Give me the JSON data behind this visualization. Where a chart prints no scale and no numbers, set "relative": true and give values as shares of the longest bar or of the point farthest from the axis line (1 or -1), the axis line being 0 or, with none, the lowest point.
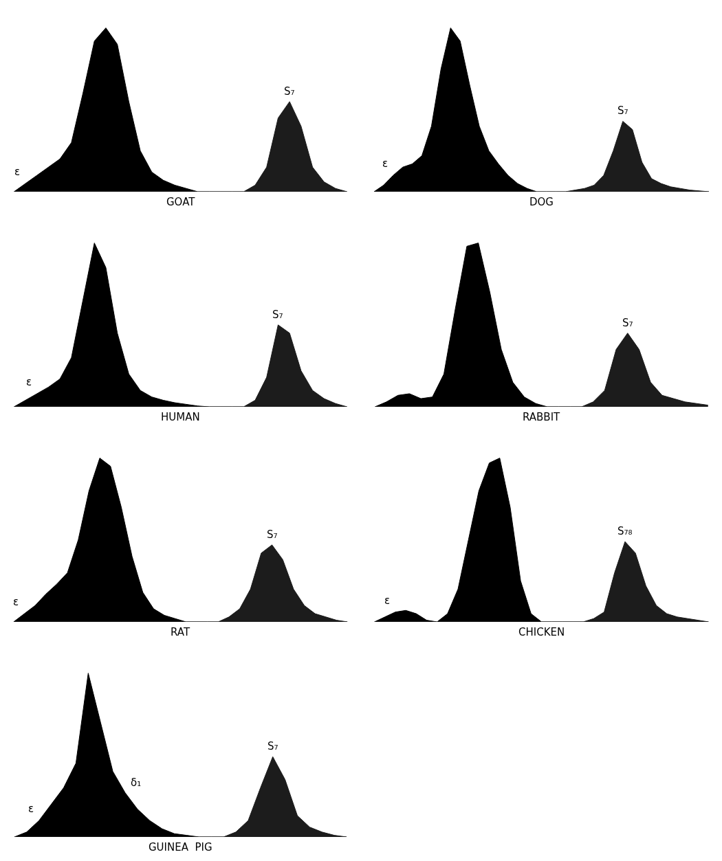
{
  "chart_data": [
    {
      "type": "area",
      "relative": true,
      "xlabel": "GOAT",
      "annotations": [
        "ε"
      ],
      "categories": [
        null,
        null,
        null,
        null,
        null,
        null,
        null,
        null,
        null,
        null,
        null,
        null,
        null,
        null,
        null,
        null,
        null,
        null,
        null,
        null,
        null,
        null,
        null,
        null,
        null,
        null,
        null,
        null,
        null,
        null
      ],
      "series": [
        {
          "color": "#000000",
          "values": [
            0,
            0.05,
            0.1,
            0.15,
            0.2,
            0.3,
            0.6,
            0.92,
            1.0,
            0.9,
            0.55,
            0.25,
            0.12,
            0.07,
            0.04,
            0.02,
            0,
            0,
            0,
            0,
            0,
            0,
            0,
            0,
            0,
            0,
            0,
            0,
            0,
            0
          ]
        },
        {
          "name": "S₇",
          "color": "#1c1c1c",
          "values": [
            0,
            0,
            0,
            0,
            0,
            0,
            0,
            0,
            0,
            0,
            0,
            0,
            0,
            0,
            0,
            0,
            0,
            0,
            0,
            0,
            0,
            0.04,
            0.15,
            0.45,
            0.55,
            0.4,
            0.15,
            0.06,
            0.02,
            0
          ]
        }
      ]
    },
    {
      "type": "area",
      "relative": true,
      "xlabel": "DOG",
      "annotations": [
        "ε"
      ],
      "categories": [
        null,
        null,
        null,
        null,
        null,
        null,
        null,
        null,
        null,
        null,
        null,
        null,
        null,
        null,
        null,
        null,
        null,
        null,
        null,
        null,
        null,
        null,
        null,
        null,
        null,
        null,
        null,
        null,
        null,
        null,
        null,
        null,
        null,
        null,
        null,
        null
      ],
      "series": [
        {
          "color": "#000000",
          "values": [
            0,
            0.04,
            0.1,
            0.15,
            0.17,
            0.22,
            0.4,
            0.75,
            1.0,
            0.92,
            0.65,
            0.4,
            0.25,
            0.17,
            0.1,
            0.05,
            0.02,
            0,
            0,
            0,
            0,
            0,
            0,
            0,
            0,
            0,
            0,
            0,
            0,
            0,
            0,
            0,
            0,
            0,
            0,
            0
          ]
        },
        {
          "name": "S₇",
          "color": "#1c1c1c",
          "values": [
            0,
            0,
            0,
            0,
            0,
            0,
            0,
            0,
            0,
            0,
            0,
            0,
            0,
            0,
            0,
            0,
            0,
            0,
            0,
            0,
            0,
            0.01,
            0.02,
            0.04,
            0.1,
            0.25,
            0.43,
            0.38,
            0.18,
            0.08,
            0.05,
            0.03,
            0.02,
            0.01,
            0.005,
            0
          ]
        }
      ]
    },
    {
      "type": "area",
      "relative": true,
      "xlabel": "HUMAN",
      "annotations": [
        "ε"
      ],
      "categories": [
        null,
        null,
        null,
        null,
        null,
        null,
        null,
        null,
        null,
        null,
        null,
        null,
        null,
        null,
        null,
        null,
        null,
        null,
        null,
        null,
        null,
        null,
        null,
        null,
        null,
        null,
        null,
        null,
        null,
        null
      ],
      "series": [
        {
          "color": "#000000",
          "values": [
            0,
            0.04,
            0.08,
            0.12,
            0.17,
            0.3,
            0.65,
            1.0,
            0.85,
            0.45,
            0.2,
            0.1,
            0.06,
            0.04,
            0.025,
            0.015,
            0.005,
            0,
            0,
            0,
            0,
            0,
            0,
            0,
            0,
            0,
            0,
            0,
            0,
            0
          ]
        },
        {
          "name": "S₇",
          "color": "#1c1c1c",
          "values": [
            0,
            0,
            0,
            0,
            0,
            0,
            0,
            0,
            0,
            0,
            0,
            0,
            0,
            0,
            0,
            0,
            0,
            0,
            0,
            0,
            0,
            0.04,
            0.18,
            0.5,
            0.45,
            0.22,
            0.1,
            0.05,
            0.02,
            0
          ]
        }
      ]
    },
    {
      "type": "area",
      "relative": true,
      "xlabel": "RABBIT",
      "categories": [
        null,
        null,
        null,
        null,
        null,
        null,
        null,
        null,
        null,
        null,
        null,
        null,
        null,
        null,
        null,
        null,
        null,
        null,
        null,
        null,
        null,
        null,
        null,
        null,
        null,
        null,
        null,
        null,
        null,
        null
      ],
      "series": [
        {
          "color": "#000000",
          "values": [
            0,
            0.03,
            0.07,
            0.08,
            0.05,
            0.06,
            0.2,
            0.6,
            0.98,
            1.0,
            0.7,
            0.35,
            0.15,
            0.06,
            0.02,
            0,
            0,
            0,
            0,
            0,
            0,
            0,
            0,
            0,
            0,
            0,
            0,
            0,
            0,
            0
          ]
        },
        {
          "name": "S₇",
          "color": "#1c1c1c",
          "values": [
            0,
            0,
            0,
            0,
            0,
            0,
            0,
            0,
            0,
            0,
            0,
            0,
            0,
            0,
            0,
            0,
            0,
            0,
            0,
            0.03,
            0.1,
            0.35,
            0.45,
            0.35,
            0.15,
            0.07,
            0.05,
            0.03,
            0.02,
            0.01
          ]
        }
      ]
    },
    {
      "type": "area",
      "relative": true,
      "xlabel": "RAT",
      "annotations": [
        "ε"
      ],
      "categories": [
        null,
        null,
        null,
        null,
        null,
        null,
        null,
        null,
        null,
        null,
        null,
        null,
        null,
        null,
        null,
        null,
        null,
        null,
        null,
        null,
        null,
        null,
        null,
        null,
        null,
        null,
        null,
        null,
        null,
        null,
        null,
        null
      ],
      "series": [
        {
          "color": "#000000",
          "values": [
            0,
            0.05,
            0.1,
            0.17,
            0.23,
            0.3,
            0.5,
            0.8,
            1.0,
            0.95,
            0.7,
            0.4,
            0.18,
            0.08,
            0.04,
            0.02,
            0,
            0,
            0,
            0,
            0,
            0,
            0,
            0,
            0,
            0,
            0,
            0,
            0,
            0,
            0,
            0
          ]
        },
        {
          "name": "S₇",
          "color": "#1c1c1c",
          "values": [
            0,
            0,
            0,
            0,
            0,
            0,
            0,
            0,
            0,
            0,
            0,
            0,
            0,
            0,
            0,
            0,
            0,
            0,
            0,
            0,
            0.03,
            0.08,
            0.2,
            0.42,
            0.47,
            0.38,
            0.2,
            0.1,
            0.05,
            0.03,
            0.01,
            0
          ]
        }
      ]
    },
    {
      "type": "area",
      "relative": true,
      "xlabel": "CHICKEN",
      "annotations": [
        "ε"
      ],
      "categories": [
        null,
        null,
        null,
        null,
        null,
        null,
        null,
        null,
        null,
        null,
        null,
        null,
        null,
        null,
        null,
        null,
        null,
        null,
        null,
        null,
        null,
        null,
        null,
        null,
        null,
        null,
        null,
        null,
        null,
        null,
        null,
        null,
        null
      ],
      "series": [
        {
          "color": "#000000",
          "values": [
            0,
            0.03,
            0.06,
            0.07,
            0.05,
            0.01,
            0,
            0.05,
            0.2,
            0.5,
            0.8,
            0.97,
            1.0,
            0.7,
            0.25,
            0.05,
            0,
            0,
            0,
            0,
            0,
            0,
            0,
            0,
            0,
            0,
            0,
            0,
            0,
            0,
            0,
            0,
            0
          ]
        },
        {
          "name": "S₇₈",
          "color": "#1c1c1c",
          "values": [
            0,
            0,
            0,
            0,
            0,
            0,
            0,
            0,
            0,
            0,
            0,
            0,
            0,
            0,
            0,
            0,
            0,
            0,
            0,
            0,
            0,
            0.02,
            0.06,
            0.3,
            0.49,
            0.42,
            0.22,
            0.1,
            0.05,
            0.03,
            0.02,
            0.01,
            0
          ]
        }
      ]
    },
    {
      "type": "area",
      "relative": true,
      "xlabel": "GUINEA  PIG",
      "annotations": [
        "ε",
        "δ₁"
      ],
      "categories": [
        null,
        null,
        null,
        null,
        null,
        null,
        null,
        null,
        null,
        null,
        null,
        null,
        null,
        null,
        null,
        null,
        null,
        null,
        null,
        null,
        null,
        null,
        null,
        null,
        null,
        null,
        null,
        null
      ],
      "series": [
        {
          "color": "#000000",
          "values": [
            0,
            0.03,
            0.1,
            0.2,
            0.3,
            0.45,
            1.0,
            0.7,
            0.4,
            0.27,
            0.17,
            0.1,
            0.05,
            0.02,
            0.01,
            0,
            0,
            0,
            0,
            0,
            0,
            0,
            0,
            0,
            0,
            0,
            0,
            0
          ]
        },
        {
          "name": "S₇",
          "color": "#1c1c1c",
          "values": [
            0,
            0,
            0,
            0,
            0,
            0,
            0,
            0,
            0,
            0,
            0,
            0,
            0,
            0,
            0,
            0,
            0,
            0,
            0.03,
            0.1,
            0.3,
            0.49,
            0.35,
            0.13,
            0.06,
            0.03,
            0.01,
            0
          ]
        }
      ]
    }
  ]
}
